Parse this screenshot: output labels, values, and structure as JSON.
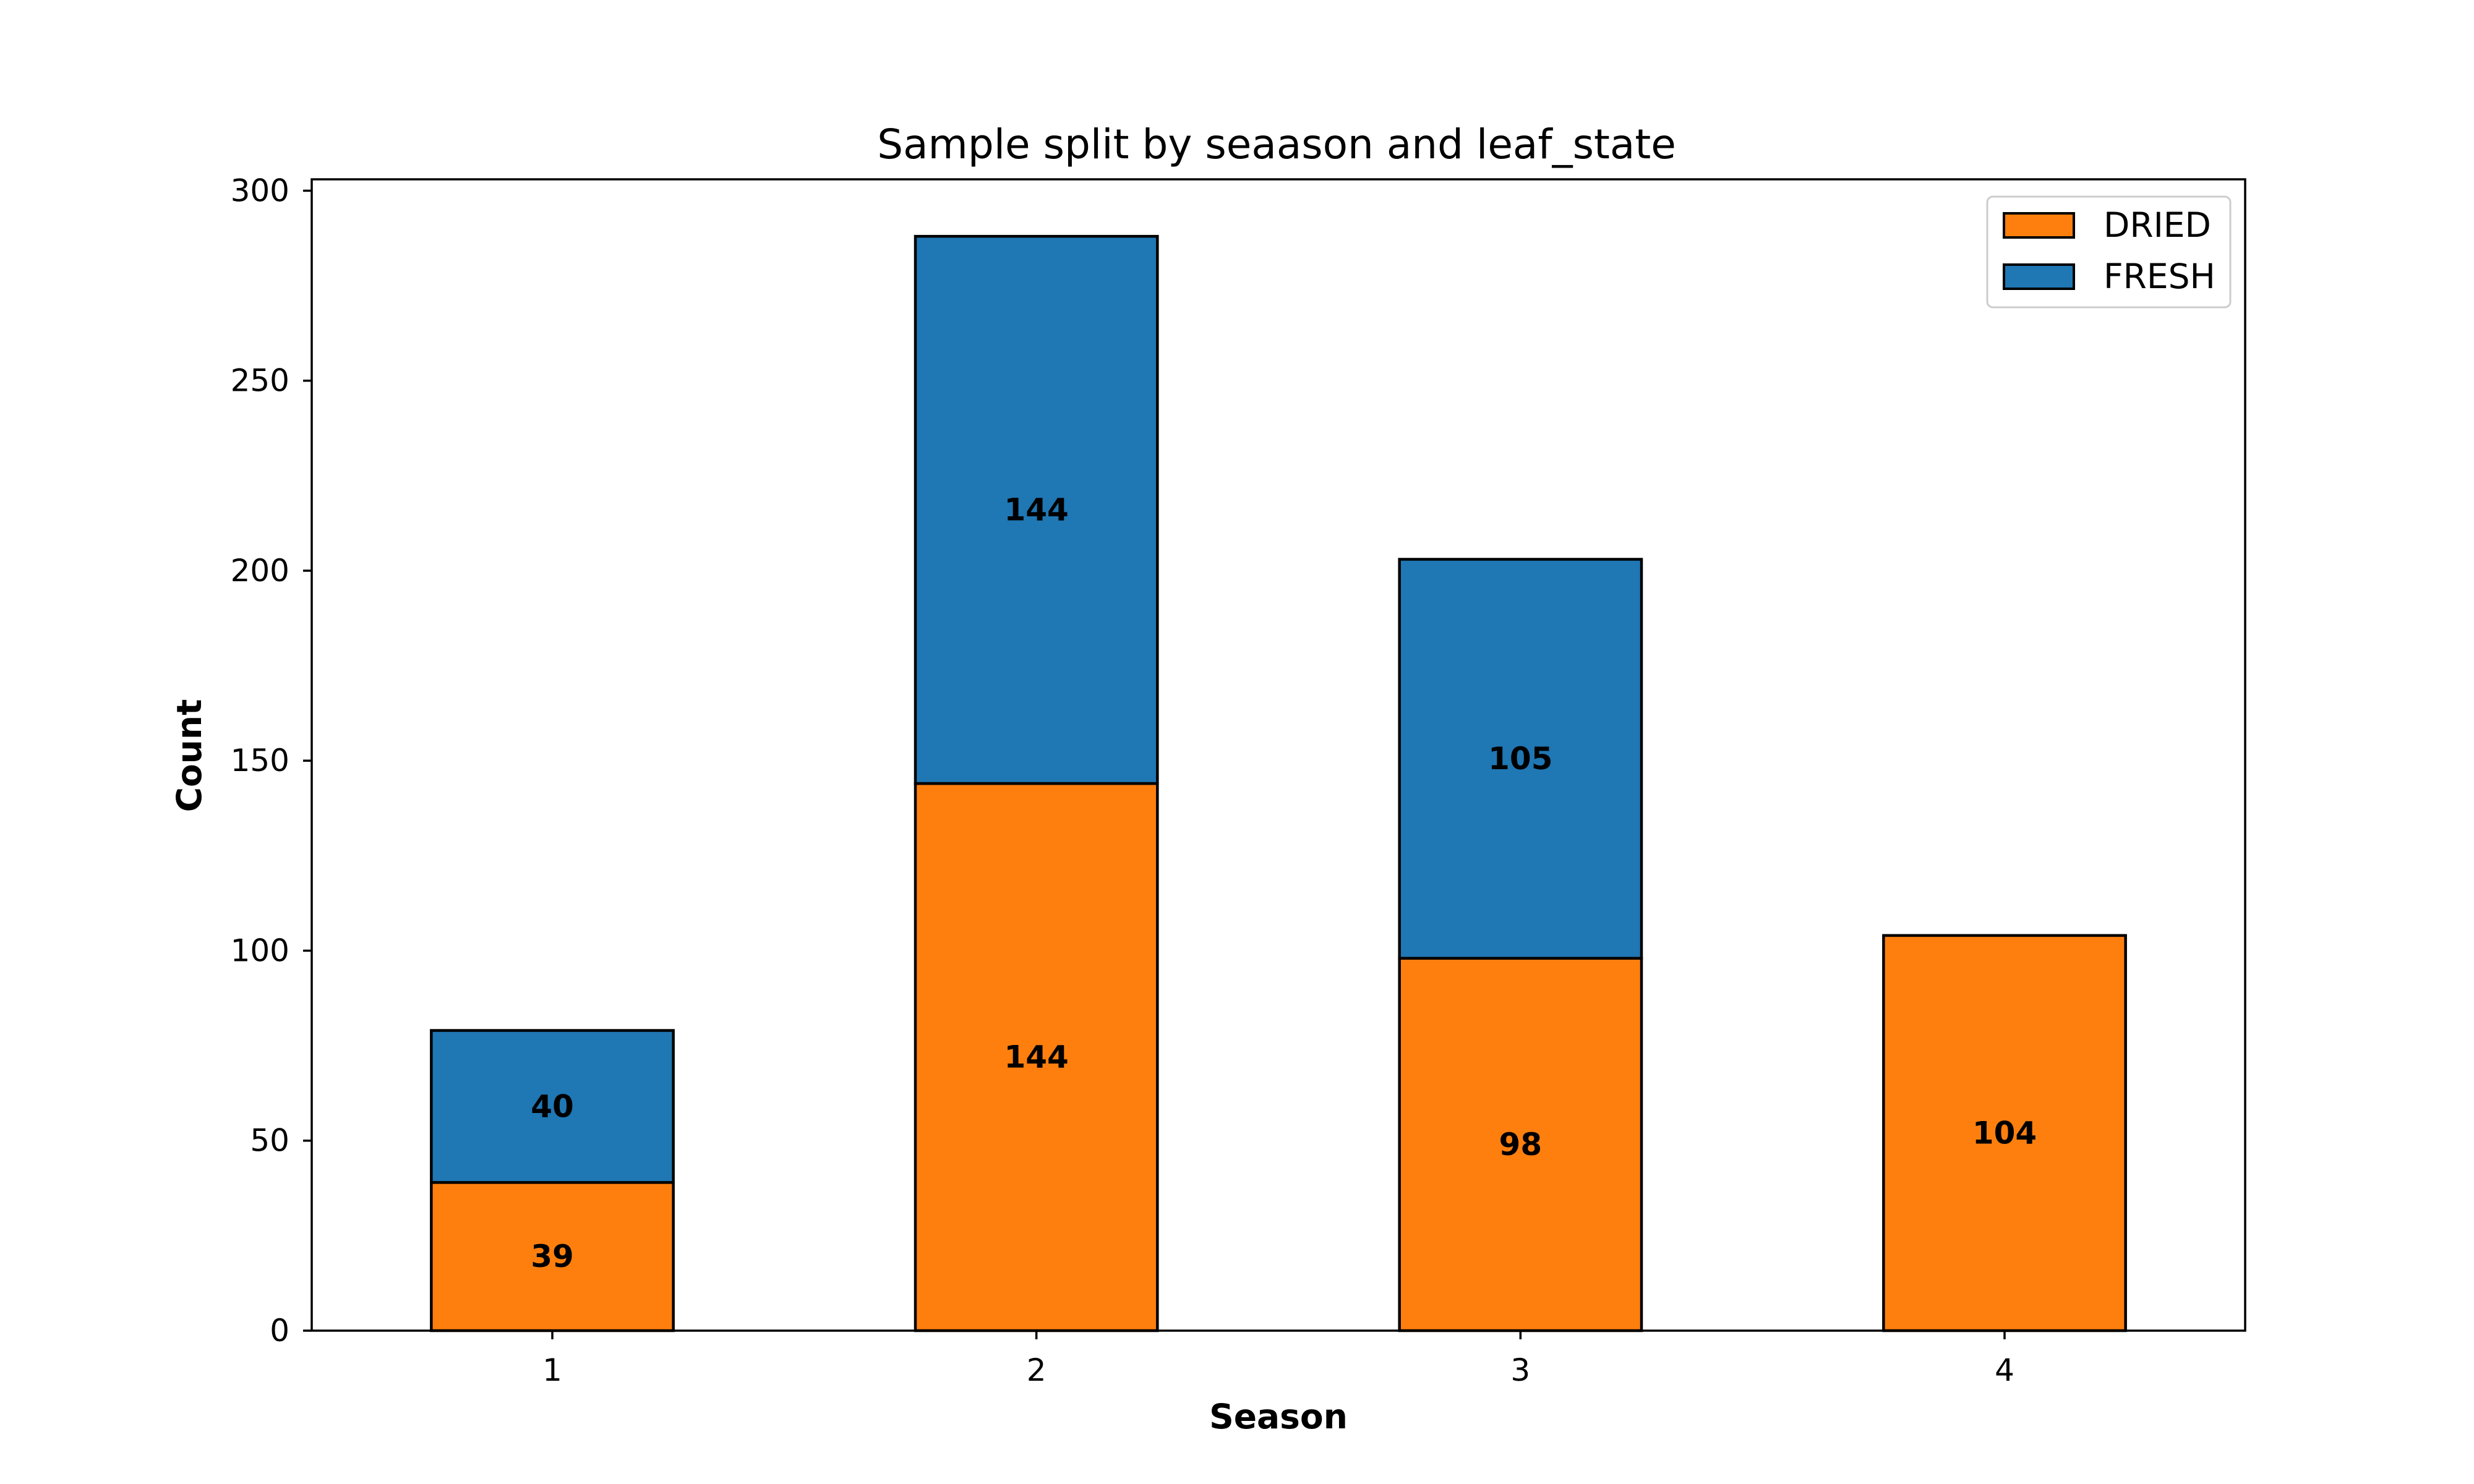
{
  "chart_data": {
    "type": "bar",
    "stacked": true,
    "title": "Sample split by seaason and leaf_state",
    "xlabel": "Season",
    "ylabel": "Count",
    "categories": [
      "1",
      "2",
      "3",
      "4"
    ],
    "series": [
      {
        "name": "DRIED",
        "color": "#ff7f0e",
        "values": [
          39,
          144,
          98,
          104
        ]
      },
      {
        "name": "FRESH",
        "color": "#1f77b4",
        "values": [
          40,
          144,
          105,
          0
        ]
      }
    ],
    "yticks": [
      0,
      50,
      100,
      150,
      200,
      250,
      300
    ],
    "ylim": [
      0,
      303
    ],
    "grid": false,
    "legend_position": "top-right"
  }
}
